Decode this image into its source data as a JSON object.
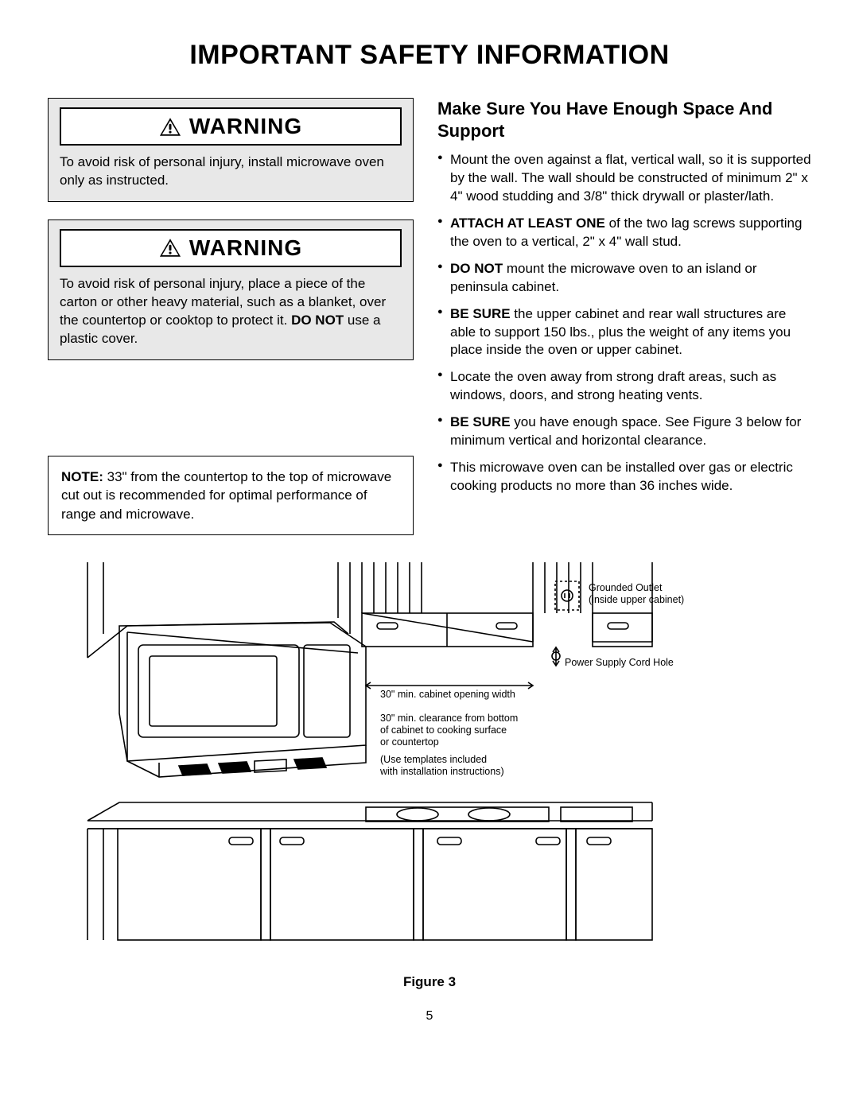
{
  "title": "IMPORTANT SAFETY INFORMATION",
  "warning1": {
    "label": "WARNING",
    "body": "To avoid risk of personal injury, install microwave oven only as instructed."
  },
  "warning2": {
    "label": "WARNING",
    "body_prefix": "To avoid risk of personal injury, place a piece of the carton or other heavy material, such as a blanket, over the countertop or cooktop to protect it. ",
    "body_bold": "DO NOT",
    "body_suffix": " use a plastic cover."
  },
  "note": {
    "label": "NOTE:",
    "text": " 33\"  from the countertop to the top of microwave cut out is recommended for optimal performance of range and microwave."
  },
  "subheading": "Make Sure You Have Enough Space And Support",
  "bullets": [
    {
      "pre": "",
      "bold": "",
      "post": "Mount the oven against a flat, vertical wall, so it is supported by the wall. The wall should be constructed of minimum 2\" x 4\" wood studding and 3/8\" thick drywall or plaster/lath."
    },
    {
      "pre": "",
      "bold": "ATTACH AT LEAST ONE",
      "post": " of the two lag screws supporting the oven to a vertical, 2\" x 4\" wall stud."
    },
    {
      "pre": "",
      "bold": "DO NOT",
      "post": " mount the microwave oven to an island or peninsula cabinet."
    },
    {
      "pre": "",
      "bold": "BE SURE",
      "post": " the upper cabinet and rear wall structures are able to support 150 lbs., plus the weight of any items you place inside the oven or upper cabinet."
    },
    {
      "pre": "",
      "bold": "",
      "post": "Locate the oven away from strong draft areas, such as windows, doors, and strong heating vents."
    },
    {
      "pre": "",
      "bold": "BE SURE",
      "post": " you have enough space. See Figure 3 below for minimum vertical and horizontal clearance."
    },
    {
      "pre": "",
      "bold": "",
      "post": "This microwave oven can be installed over gas or electric cooking products no more than 36 inches wide."
    }
  ],
  "figure": {
    "caption": "Figure 3",
    "labels": {
      "outlet_l1": "Grounded Outlet",
      "outlet_l2": "(inside upper cabinet)",
      "cord_hole": "Power Supply Cord Hole",
      "cab_width": "30\" min. cabinet opening width",
      "clearance_l1": "30\" min. clearance from bottom",
      "clearance_l2": "of cabinet to cooking surface",
      "clearance_l3": "or countertop",
      "templates_l1": "(Use templates included",
      "templates_l2": " with installation instructions)"
    }
  },
  "page_number": "5"
}
